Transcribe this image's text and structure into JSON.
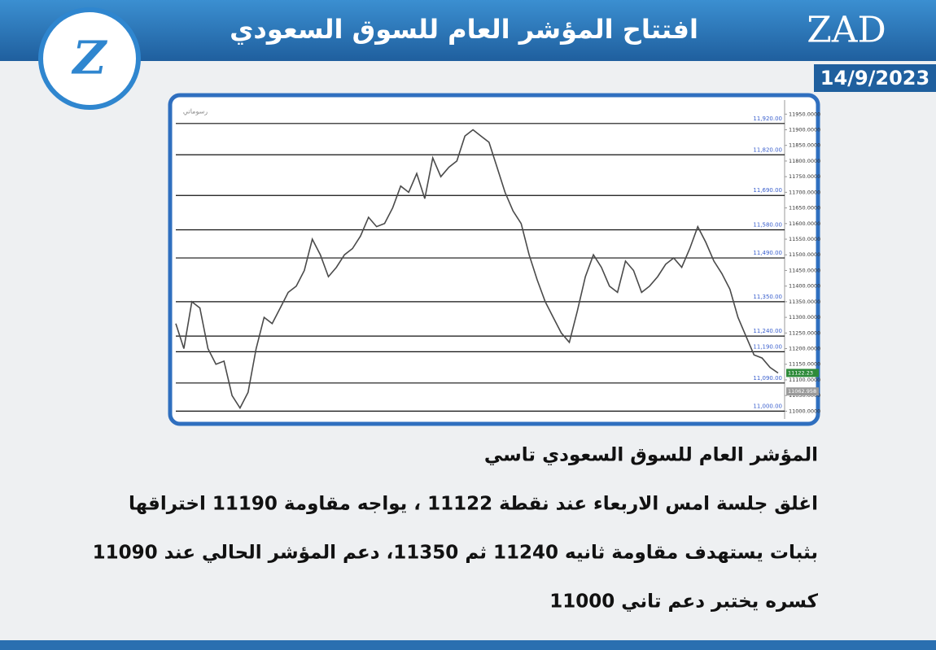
{
  "header": {
    "title": "افتتاح المؤشر العام للسوق السعودي",
    "brand": "ZAD",
    "date": "14/9/2023"
  },
  "chart_data": {
    "type": "line",
    "annotation": "رسوماتي",
    "color": "#4a4a4a",
    "values": [
      11280,
      11200,
      11350,
      11330,
      11200,
      11150,
      11160,
      11050,
      11010,
      11060,
      11200,
      11300,
      11280,
      11330,
      11380,
      11400,
      11450,
      11550,
      11500,
      11430,
      11460,
      11500,
      11520,
      11560,
      11620,
      11590,
      11600,
      11650,
      11720,
      11700,
      11760,
      11680,
      11810,
      11750,
      11780,
      11800,
      11880,
      11900,
      11880,
      11860,
      11780,
      11700,
      11640,
      11600,
      11500,
      11420,
      11350,
      11300,
      11250,
      11220,
      11320,
      11430,
      11500,
      11460,
      11400,
      11380,
      11480,
      11450,
      11380,
      11400,
      11430,
      11470,
      11490,
      11460,
      11520,
      11590,
      11540,
      11480,
      11440,
      11390,
      11300,
      11240,
      11180,
      11170,
      11140,
      11122
    ],
    "ylim": [
      10975,
      11995
    ],
    "yticks": [
      {
        "value": 11000,
        "label": "11000.0000"
      },
      {
        "value": 11050,
        "label": "11050.0000"
      },
      {
        "value": 11100,
        "label": "11100.0000"
      },
      {
        "value": 11150,
        "label": "11150.0000"
      },
      {
        "value": 11200,
        "label": "11200.0000"
      },
      {
        "value": 11250,
        "label": "11250.0000"
      },
      {
        "value": 11300,
        "label": "11300.0000"
      },
      {
        "value": 11350,
        "label": "11350.0000"
      },
      {
        "value": 11400,
        "label": "11400.0000"
      },
      {
        "value": 11450,
        "label": "11450.0000"
      },
      {
        "value": 11500,
        "label": "11500.0000"
      },
      {
        "value": 11550,
        "label": "11550.0000"
      },
      {
        "value": 11600,
        "label": "11600.0000"
      },
      {
        "value": 11650,
        "label": "11650.0000"
      },
      {
        "value": 11700,
        "label": "11700.0000"
      },
      {
        "value": 11750,
        "label": "11750.0000"
      },
      {
        "value": 11800,
        "label": "11800.0000"
      },
      {
        "value": 11850,
        "label": "11850.0000"
      },
      {
        "value": 11900,
        "label": "11900.0000"
      },
      {
        "value": 11950,
        "label": "11950.0000"
      }
    ],
    "levels": [
      {
        "value": 11920,
        "label": "11,920.00"
      },
      {
        "value": 11820,
        "label": "11,820.00"
      },
      {
        "value": 11690,
        "label": "11,690.00"
      },
      {
        "value": 11580,
        "label": "11,580.00"
      },
      {
        "value": 11490,
        "label": "11,490.00"
      },
      {
        "value": 11350,
        "label": "11,350.00"
      },
      {
        "value": 11240,
        "label": "11,240.00"
      },
      {
        "value": 11190,
        "label": "11,190.00"
      },
      {
        "value": 11090,
        "label": "11,090.00"
      },
      {
        "value": 11000,
        "label": "11,000.00"
      }
    ],
    "price_labels": [
      {
        "value": 11122.23,
        "label": "11122.23",
        "color": "#2e8b3a"
      },
      {
        "value": 11062.958,
        "label": "11062.958",
        "color": "#9a9a9a"
      }
    ]
  },
  "body": {
    "paragraphs": [
      "المؤشر العام للسوق السعودي تاسي",
      "اغلق جلسة  امس الاربعاء عند نقطة 11122 ، يواجه مقاومة 11190 اختراقها",
      "بثبات يستهدف مقاومة ثانيه 11240 ثم 11350، دعم المؤشر الحالي عند 11090",
      "كسره يختبر دعم  تاني 11000"
    ]
  }
}
